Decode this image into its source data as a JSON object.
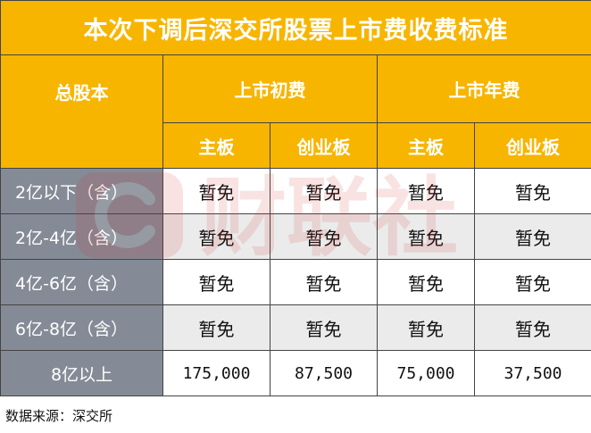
{
  "title": "本次下调后深交所股票上市费收费标准",
  "header": {
    "total_shares": "总股本",
    "initial_fee": "上市初费",
    "annual_fee": "上市年费",
    "main_board": "主板",
    "chinext": "创业板"
  },
  "rows": [
    {
      "label": "2亿以下（含）",
      "values": [
        "暂免",
        "暂免",
        "暂免",
        "暂免"
      ]
    },
    {
      "label": "2亿-4亿（含）",
      "values": [
        "暂免",
        "暂免",
        "暂免",
        "暂免"
      ]
    },
    {
      "label": "4亿-6亿（含）",
      "values": [
        "暂免",
        "暂免",
        "暂免",
        "暂免"
      ]
    },
    {
      "label": "6亿-8亿（含）",
      "values": [
        "暂免",
        "暂免",
        "暂免",
        "暂免"
      ]
    },
    {
      "label": "8亿以上",
      "values": [
        "175,000",
        "87,500",
        "75,000",
        "37,500"
      ]
    }
  ],
  "source": "数据来源：深交所",
  "watermark": "财联社",
  "colors": {
    "header_bg": "#f7b500",
    "label_bg": "#858b96",
    "stripe_bg": "#ebebeb",
    "watermark": "#d12a2a"
  }
}
